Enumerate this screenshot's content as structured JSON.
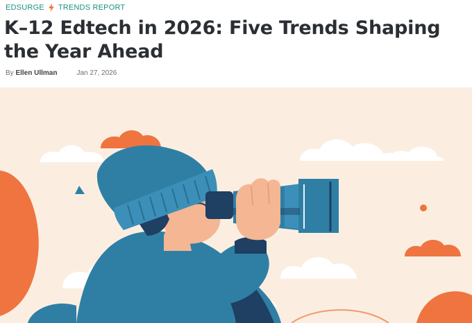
{
  "breadcrumb": {
    "site": "EDSURGE",
    "section": "TRENDS REPORT",
    "icon": "lightning-bolt-icon",
    "accent_color": "#1a8f7f",
    "bolt_color": "#f0783c"
  },
  "article": {
    "title": "K–12 Edtech in 2026: Five Trends Shaping the Year Ahead",
    "byline_prefix": "By",
    "author": "Ellen Ullman",
    "date": "Jan 27, 2026"
  },
  "hero": {
    "illustration": "person-with-binoculars-illustration",
    "background_color": "#fbeee1",
    "accent_colors": [
      "#ef7440",
      "#2f7fa5",
      "#1f3f63"
    ]
  }
}
